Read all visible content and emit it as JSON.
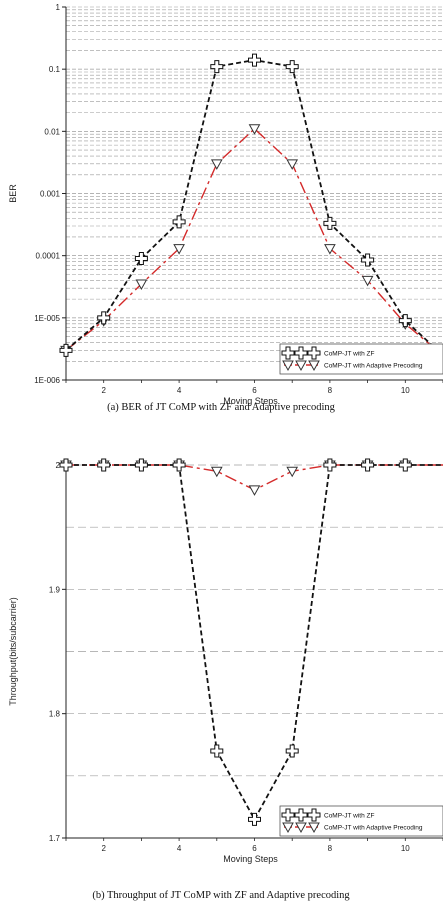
{
  "chart_data": [
    {
      "type": "line",
      "y_scale": "log",
      "title": "",
      "xlabel": "Moving Steps",
      "ylabel": "BER",
      "caption": "(a) BER of JT CoMP with ZF and Adaptive precoding",
      "xlim": [
        1,
        11
      ],
      "ylim": [
        1e-06,
        1
      ],
      "x_ticks": [
        "2",
        "4",
        "6",
        "8",
        "10"
      ],
      "y_ticks": [
        "1",
        "0.1",
        "0.01",
        "0.001",
        "0.0001",
        "1E-005",
        "1E-006"
      ],
      "grid": true,
      "legend_position": "bottom-right",
      "x": [
        1,
        2,
        3,
        4,
        5,
        6,
        7,
        8,
        9,
        10,
        11
      ],
      "series": [
        {
          "name": "CoMP-JT with ZF",
          "color": "#111111",
          "marker": "cross",
          "values": [
            3e-06,
            1e-05,
            9e-05,
            0.00035,
            0.11,
            0.14,
            0.11,
            0.00033,
            8.5e-05,
            9e-06,
            2.5e-06
          ]
        },
        {
          "name": "CoMP-JT with Adaptive Precoding",
          "color": "#d42a2a",
          "marker": "triangle-down",
          "values": [
            3e-06,
            9e-06,
            3.5e-05,
            0.00013,
            0.003,
            0.011,
            0.003,
            0.00013,
            4e-05,
            8e-06,
            2.5e-06
          ]
        }
      ]
    },
    {
      "type": "line",
      "title": "",
      "xlabel": "Moving Steps",
      "ylabel": "Throughput(bits/subcarrier)",
      "caption": "(b) Throughput of JT CoMP with ZF and Adaptive precoding",
      "xlim": [
        1,
        11
      ],
      "ylim": [
        1.7,
        2.0
      ],
      "x_ticks": [
        "2",
        "4",
        "6",
        "8",
        "10"
      ],
      "y_ticks": [
        "2",
        "1.9",
        "1.8",
        "1.7"
      ],
      "grid": true,
      "legend_position": "bottom-right",
      "x": [
        1,
        2,
        3,
        4,
        5,
        6,
        7,
        8,
        9,
        10,
        11
      ],
      "series": [
        {
          "name": "CoMP-JT with ZF",
          "color": "#111111",
          "marker": "cross",
          "values": [
            2.0,
            2.0,
            2.0,
            2.0,
            1.77,
            1.715,
            1.77,
            2.0,
            2.0,
            2.0,
            2.0
          ]
        },
        {
          "name": "CoMP-JT with Adaptive Precoding",
          "color": "#d42a2a",
          "marker": "triangle-down",
          "values": [
            2.0,
            2.0,
            2.0,
            2.0,
            1.995,
            1.98,
            1.995,
            2.0,
            2.0,
            2.0,
            2.0
          ]
        }
      ]
    }
  ]
}
